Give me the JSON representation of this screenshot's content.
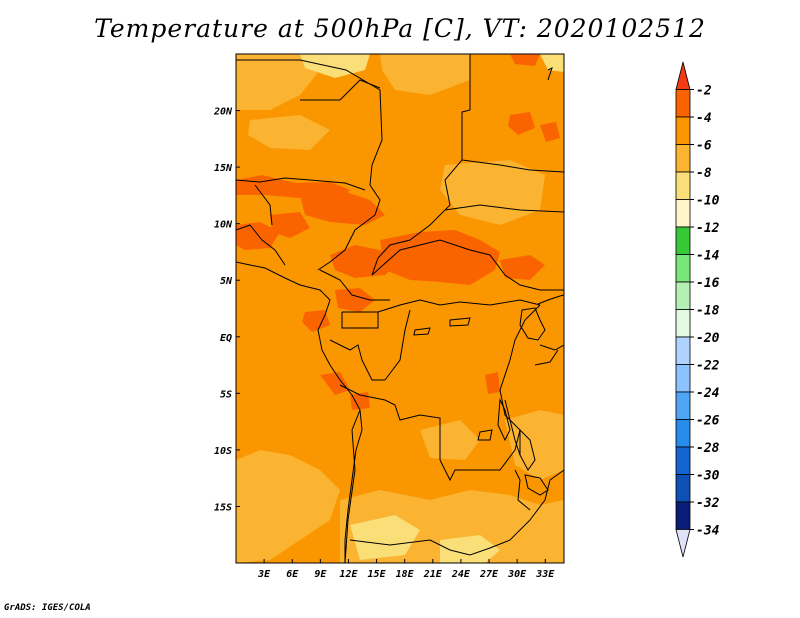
{
  "title": "Temperature at 500hPa [C], VT: 2020102512",
  "credit": "GrADS: IGES/COLA",
  "map": {
    "variable": "Temperature at 500hPa",
    "units": "C",
    "valid_time": "2020102512",
    "lon_range": [
      0,
      35
    ],
    "lat_range": [
      -20,
      25
    ],
    "x_ticks": [
      "3E",
      "6E",
      "9E",
      "12E",
      "15E",
      "18E",
      "21E",
      "24E",
      "27E",
      "30E",
      "33E"
    ],
    "y_ticks": [
      "20N",
      "15N",
      "10N",
      "5N",
      "EQ",
      "5S",
      "10S",
      "15S"
    ]
  },
  "colorbar": {
    "labels": [
      "-2",
      "-4",
      "-6",
      "-8",
      "-10",
      "-12",
      "-14",
      "-16",
      "-18",
      "-20",
      "-22",
      "-24",
      "-26",
      "-28",
      "-30",
      "-32",
      "-34"
    ],
    "colors": [
      "#f03c14",
      "#fa6400",
      "#fa9600",
      "#fab432",
      "#fade78",
      "#fff5c8",
      "#37c837",
      "#78e678",
      "#b4f0b4",
      "#e1fae1",
      "#afd2ff",
      "#8cc3ff",
      "#50a5f5",
      "#288ceb",
      "#1464d2",
      "#0f50b4",
      "#0a1e78",
      "#e1e1fa"
    ]
  },
  "palette": {
    "background_fill": "#fa9600",
    "warm_fill": "#fa6400",
    "cool_fill": "#fab432",
    "coolest_fill": "#fade78",
    "border": "#000000"
  }
}
